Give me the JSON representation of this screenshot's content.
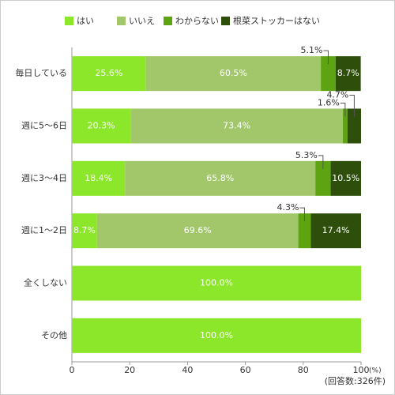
{
  "chart_data": {
    "type": "stacked_barh",
    "categories": [
      "毎日している",
      "週に5〜6日",
      "週に3〜4日",
      "週に1〜2日",
      "全くしない",
      "その他"
    ],
    "series": [
      {
        "name": "はい",
        "color": "#8ce62a",
        "values": [
          25.6,
          20.3,
          18.4,
          8.7,
          100.0,
          100.0
        ],
        "value_labels": [
          "25.6%",
          "20.3%",
          "18.4%",
          "8.7%",
          "100.0%",
          "100.0%"
        ]
      },
      {
        "name": "いいえ",
        "color": "#a2c76b",
        "values": [
          60.5,
          73.4,
          65.8,
          69.6,
          0,
          0
        ],
        "value_labels": [
          "60.5%",
          "73.4%",
          "65.8%",
          "69.6%",
          null,
          null
        ]
      },
      {
        "name": "わからない",
        "color": "#5ea312",
        "values": [
          5.1,
          1.6,
          5.3,
          4.3,
          0,
          0
        ],
        "value_labels": [
          "5.1%",
          "1.6%",
          "5.3%",
          "4.3%",
          null,
          null
        ]
      },
      {
        "name": "根菜ストッカーはない",
        "color": "#2e4f0c",
        "values": [
          8.7,
          4.7,
          10.5,
          17.4,
          0,
          0
        ],
        "value_labels": [
          "8.7%",
          "4.7%",
          "10.5%",
          "17.4%",
          null,
          null
        ]
      }
    ],
    "xlim": [
      0,
      100
    ],
    "xticks": [
      0,
      20,
      40,
      60,
      80,
      100
    ],
    "x_unit": "(%)",
    "annotation": "(回答数:326件)",
    "grid": false,
    "legend": "top"
  }
}
